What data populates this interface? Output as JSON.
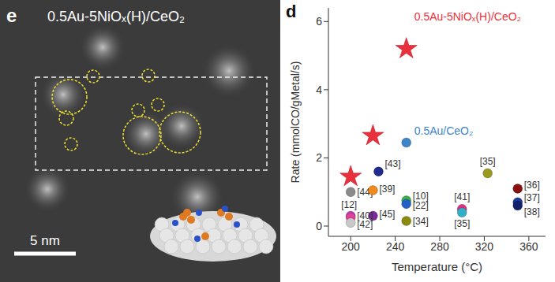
{
  "image_panel": {
    "label": "e",
    "title": "0.5Au-5NiOₓ(H)/CeO₂",
    "scale_bar": "5 nm"
  },
  "chart_data": {
    "type": "scatter",
    "title": "d",
    "x_label": "Temperature (°C)",
    "y_label": "Rate (mmolCO/gMetal/s)",
    "xlim": [
      180,
      375
    ],
    "xticks": [
      200,
      240,
      280,
      320,
      360
    ],
    "ylim": [
      -0.3,
      6.4
    ],
    "yticks": [
      0,
      2,
      4,
      6
    ],
    "series": [
      {
        "name": "0.5Au-5NiOₓ(H)/CeO₂",
        "color": "#e8313c",
        "marker": "star",
        "x": [
          200,
          220,
          250
        ],
        "values": [
          1.45,
          2.65,
          5.2
        ]
      },
      {
        "name": "0.5Au/CeO₂",
        "color": "#3d85c6",
        "marker": "circle",
        "x": [
          250
        ],
        "values": [
          2.45
        ]
      },
      {
        "marker": "circle",
        "x": [
          225,
          200,
          220,
          250,
          250,
          220,
          250,
          200,
          200,
          200,
          323,
          350,
          350,
          350,
          300,
          300
        ],
        "values": [
          1.6,
          1.0,
          1.05,
          0.75,
          0.65,
          0.3,
          0.15,
          0.3,
          0.25,
          0.1,
          1.55,
          1.1,
          0.7,
          0.6,
          0.5,
          0.4
        ],
        "labels": [
          "[43]",
          "[44]",
          "[39]",
          "[10]",
          "[22]",
          "[45]",
          "[34]",
          "[12]",
          "[40]",
          "[42]",
          "[35]",
          "[36]",
          "[37]",
          "[38]",
          "[41]",
          "[35]"
        ],
        "colors": [
          "#1f2a8a",
          "#8a8a8a",
          "#f08a1c",
          "#3cb04a",
          "#2060c8",
          "#7a2a9a",
          "#8a8a10",
          "#c040c0",
          "#e0409a",
          "#c8c8c8",
          "#9a9a20",
          "#8a1010",
          "#1a3aa0",
          "#14206a",
          "#e03080",
          "#30b0c8"
        ]
      }
    ]
  }
}
